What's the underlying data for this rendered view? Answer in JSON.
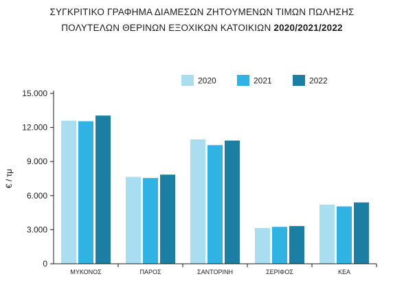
{
  "title_line1": "ΣΥΓΚΡΙΤΙΚΟ ΓΡΑΦΗΜΑ ΔΙΑΜΕΣΩΝ ΖΗΤΟΥΜΕΝΩΝ ΤΙΜΩΝ ΠΩΛΗΣΗΣ",
  "title_line2": "ΠΟΛΥΤΕΛΩΝ ΘΕΡΙΝΩΝ ΕΞΟΧΙΚΩΝ ΚΑΤΟΙΚΙΩΝ",
  "title_years": "2020/2021/2022",
  "chart_data": {
    "type": "bar",
    "title": "ΣΥΓΚΡΙΤΙΚΟ ΓΡΑΦΗΜΑ ΔΙΑΜΕΣΩΝ ΖΗΤΟΥΜΕΝΩΝ ΤΙΜΩΝ ΠΩΛΗΣΗΣ ΠΟΛΥΤΕΛΩΝ ΘΕΡΙΝΩΝ ΕΞΟΧΙΚΩΝ ΚΑΤΟΙΚΙΩΝ 2020/2021/2022",
    "ylabel": "€ / τμ",
    "ylim": [
      0,
      15000
    ],
    "yticks": [
      0,
      3000,
      6000,
      9000,
      12000,
      15000
    ],
    "ytick_labels": [
      "0",
      "3.000",
      "6.000",
      "9.000",
      "12.000",
      "15.000"
    ],
    "categories": [
      "ΜΥΚΟΝΟΣ",
      "ΠΑΡΟΣ",
      "ΣΑΝΤΟΡΙΝΗ",
      "ΣΕΡΙΦΟΣ",
      "ΚΕΑ"
    ],
    "series": [
      {
        "name": "2020",
        "color": "#a8def0",
        "values": [
          12600,
          7650,
          10950,
          3150,
          5200
        ]
      },
      {
        "name": "2021",
        "color": "#2eb3e3",
        "values": [
          12550,
          7550,
          10450,
          3250,
          5050
        ]
      },
      {
        "name": "2022",
        "color": "#1a7fa3",
        "values": [
          13050,
          7850,
          10850,
          3320,
          5400
        ]
      }
    ],
    "legend_position": "top-right",
    "grid": false
  }
}
